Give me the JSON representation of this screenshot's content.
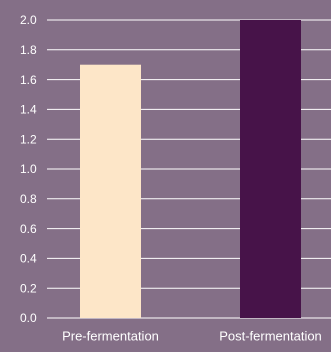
{
  "chart_data": {
    "type": "bar",
    "categories": [
      "Pre-fermentation",
      "Post-fermentation"
    ],
    "values": [
      1.7,
      2.0
    ],
    "colors": [
      "#fde6c8",
      "#471349"
    ],
    "ylim": [
      0,
      2.0
    ],
    "yticks": [
      "0.0",
      "0.2",
      "0.4",
      "0.6",
      "0.8",
      "1.0",
      "1.2",
      "1.4",
      "1.6",
      "1.8",
      "2.0"
    ],
    "title": "",
    "xlabel": "",
    "ylabel": "",
    "grid": true,
    "background": "#846f87",
    "grid_color": "#ffffff",
    "text_color": "#ffffff"
  }
}
